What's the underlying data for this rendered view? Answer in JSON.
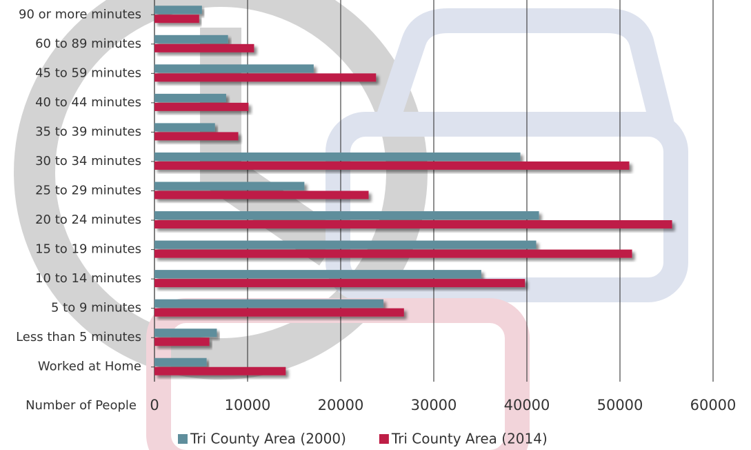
{
  "chart_data": {
    "type": "bar",
    "orientation": "horizontal",
    "x_label": "Number of People",
    "categories": [
      "90 or more minutes",
      "60 to 89 minutes",
      "45 to 59 minutes",
      "40 to 44 minutes",
      "35 to 39 minutes",
      "30 to 34 minutes",
      "25 to 29 minutes",
      "20 to 24 minutes",
      "15 to 19 minutes",
      "10 to 14 minutes",
      "5 to 9 minutes",
      "Less than 5 minutes",
      "Worked at Home"
    ],
    "series": [
      {
        "name": "Tri County Area (2000)",
        "color": "#5f8e9c",
        "values": [
          5100,
          7900,
          17100,
          7700,
          6500,
          39300,
          16100,
          41300,
          41000,
          35100,
          24600,
          6700,
          5600
        ]
      },
      {
        "name": "Tri County Area (2014)",
        "color": "#be1e46",
        "values": [
          4800,
          10700,
          23800,
          10100,
          9000,
          51000,
          23000,
          55600,
          51300,
          39800,
          26800,
          5900,
          14100
        ]
      }
    ],
    "xlim": [
      0,
      60000
    ],
    "xticks": [
      0,
      10000,
      20000,
      30000,
      40000,
      50000,
      60000
    ],
    "grid": true,
    "legend": "bottom"
  }
}
